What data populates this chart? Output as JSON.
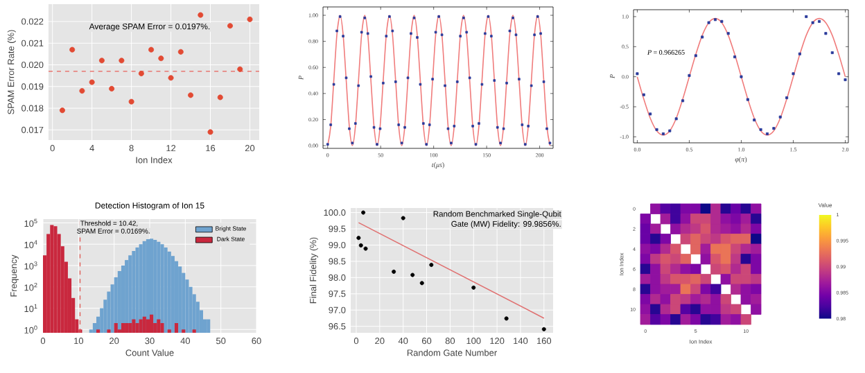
{
  "chart_data": [
    {
      "type": "scatter",
      "xlabel": "Ion Index",
      "ylabel": "SPAM Error Rate (%)",
      "grid": true,
      "x": [
        1,
        2,
        3,
        4,
        5,
        6,
        7,
        8,
        9,
        10,
        11,
        12,
        13,
        14,
        15,
        16,
        17,
        18,
        19,
        20
      ],
      "series": [
        {
          "marker": "circle",
          "color": "#e24a33",
          "values": [
            0.0179,
            0.0207,
            0.0188,
            0.0192,
            0.0202,
            0.0189,
            0.0202,
            0.0183,
            0.0196,
            0.0207,
            0.0203,
            0.0194,
            0.0206,
            0.0186,
            0.0223,
            0.0169,
            0.0185,
            0.0218,
            0.0198,
            0.0221
          ]
        }
      ],
      "xlim": [
        -0.4,
        20.95
      ],
      "ylim": [
        0.01653,
        0.0228
      ],
      "xticks": [
        0,
        4,
        8,
        12,
        16,
        20
      ],
      "yticks": [
        0.017,
        0.018,
        0.019,
        {
          "value": 0.02,
          "label": "0.020"
        },
        0.021,
        0.022
      ],
      "ref_lines": [
        {
          "axis": "y",
          "value": 0.0197,
          "color": "#e8605a",
          "line_style": "dashed"
        }
      ],
      "annotations": [
        "Average SPAM Error = 0.0197%."
      ]
    },
    {
      "type": "line",
      "xlabel": "*t*(*μs*)",
      "ylabel": "P",
      "xlim": [
        -4.4,
        212.7
      ],
      "ylim": [
        -0.021,
        1.064
      ],
      "xticks": [
        0,
        50,
        100,
        150,
        200
      ],
      "yticks": [
        {
          "value": 0,
          "label": "0.00"
        },
        {
          "value": 0.2,
          "label": "0.20"
        },
        {
          "value": 0.4,
          "label": "0.40"
        },
        {
          "value": 0.6,
          "label": "0.60"
        },
        {
          "value": 0.8,
          "label": "0.80"
        },
        {
          "value": 1,
          "label": "1.00"
        }
      ],
      "series": [
        {
          "type": "line",
          "color": "#f07c7c",
          "x": [
            0,
            2.9,
            5.8,
            8.7,
            11.7,
            14.6,
            17.5,
            20.4,
            23.3,
            26.2,
            29.1,
            32.0,
            35.0,
            37.9,
            40.8,
            43.7,
            46.6,
            49.5,
            52.4,
            55.3,
            58.3,
            61.2,
            64.1,
            67.0,
            69.9,
            72.8,
            75.7,
            78.6,
            81.6,
            84.5,
            87.4,
            90.3,
            93.2,
            96.1,
            99.0,
            101.9,
            104.9,
            107.8,
            110.7,
            113.6,
            116.5,
            119.4,
            122.3,
            125.2,
            128.2,
            131.1,
            134.0,
            136.9,
            139.8,
            142.7,
            145.6,
            148.5,
            151.5,
            154.4,
            157.3,
            160.2,
            163.1,
            166.0,
            168.9,
            171.8,
            174.8,
            177.7,
            180.6,
            183.5,
            186.4,
            189.3,
            192.2,
            195.1,
            198.1,
            201.0,
            203.9,
            206.8,
            209.7
          ],
          "values": [
            0,
            0.15,
            0.5,
            0.85,
            1,
            0.85,
            0.5,
            0.15,
            0,
            0.15,
            0.5,
            0.85,
            1,
            0.85,
            0.5,
            0.15,
            0,
            0.15,
            0.5,
            0.85,
            1,
            0.85,
            0.5,
            0.15,
            0,
            0.15,
            0.5,
            0.85,
            1,
            0.85,
            0.5,
            0.15,
            0,
            0.15,
            0.5,
            0.85,
            1,
            0.85,
            0.5,
            0.15,
            0,
            0.15,
            0.5,
            0.85,
            1,
            0.85,
            0.5,
            0.15,
            0,
            0.15,
            0.5,
            0.85,
            1,
            0.85,
            0.5,
            0.15,
            0,
            0.15,
            0.5,
            0.85,
            1,
            0.85,
            0.5,
            0.15,
            0,
            0.15,
            0.5,
            0.85,
            1,
            0.85,
            0.5,
            0.15,
            0
          ]
        },
        {
          "type": "scatter",
          "marker": "square",
          "color": "#2a3a9a",
          "x": [
            0,
            2.9,
            5.8,
            8.7,
            11.7,
            14.6,
            17.5,
            20.4,
            23.3,
            26.2,
            29.1,
            32.0,
            35.0,
            37.9,
            40.8,
            43.7,
            46.6,
            49.5,
            52.4,
            55.3,
            58.3,
            61.2,
            64.1,
            67.0,
            69.9,
            72.8,
            75.7,
            78.6,
            81.6,
            84.5,
            87.4,
            90.3,
            93.2,
            96.1,
            99.0,
            101.9,
            104.9,
            107.8,
            110.7,
            113.6,
            116.5,
            119.4,
            122.3,
            125.2,
            128.2,
            131.1,
            134.0,
            136.9,
            139.8,
            142.7,
            145.6,
            148.5,
            151.5,
            154.4,
            157.3,
            160.2,
            163.1,
            166.0,
            168.9,
            171.8,
            174.8,
            177.7,
            180.6,
            183.5,
            186.4,
            189.3,
            192.2,
            195.1,
            198.1,
            201.0,
            203.9,
            206.8,
            209.7
          ],
          "values": [
            0.01,
            0.16,
            0.47,
            0.88,
            0.99,
            0.84,
            0.52,
            0.13,
            0.02,
            0.17,
            0.46,
            0.87,
            0.98,
            0.86,
            0.53,
            0.14,
            0.01,
            0.13,
            0.48,
            0.84,
            0.99,
            0.88,
            0.49,
            0.16,
            0.02,
            0.14,
            0.52,
            0.86,
            0.98,
            0.83,
            0.47,
            0.17,
            0.01,
            0.16,
            0.51,
            0.87,
            0.99,
            0.85,
            0.46,
            0.13,
            0.02,
            0.15,
            0.49,
            0.84,
            0.98,
            0.87,
            0.52,
            0.15,
            0.01,
            0.17,
            0.47,
            0.86,
            0.99,
            0.84,
            0.5,
            0.14,
            0.02,
            0.13,
            0.48,
            0.88,
            0.98,
            0.85,
            0.51,
            0.16,
            0.01,
            0.15,
            0.46,
            0.85,
            0.99,
            0.86,
            0.49,
            0.13,
            0.02
          ]
        }
      ]
    },
    {
      "type": "line",
      "xlabel": "*φ*(*π*)",
      "ylabel": "P",
      "xlim": [
        -0.036,
        2.03
      ],
      "ylim": [
        -1.1,
        1.115
      ],
      "xticks": [
        {
          "value": 0,
          "label": "0.0"
        },
        0.5,
        {
          "value": 1,
          "label": "1.0"
        },
        1.5,
        {
          "value": 2,
          "label": "2.0"
        }
      ],
      "yticks": [
        {
          "value": -1,
          "label": "-1.0"
        },
        -0.5,
        {
          "value": 0,
          "label": "0.0"
        },
        0.5,
        {
          "value": 1,
          "label": "1.0"
        }
      ],
      "annotations": [
        "*P* = 0.966265"
      ],
      "series": [
        {
          "type": "line",
          "color": "#f07c7c",
          "x": [
            0,
            0.0625,
            0.125,
            0.1875,
            0.25,
            0.3125,
            0.375,
            0.4375,
            0.5,
            0.5625,
            0.625,
            0.6875,
            0.75,
            0.8125,
            0.875,
            0.9375,
            1,
            1.0625,
            1.125,
            1.1875,
            1.25,
            1.3125,
            1.375,
            1.4375,
            1.5,
            1.5625,
            1.625,
            1.6875,
            1.75,
            1.8125,
            1.875,
            1.9375,
            2
          ],
          "values": [
            0,
            -0.37,
            -0.69,
            -0.9,
            -0.97,
            -0.9,
            -0.69,
            -0.37,
            0,
            0.37,
            0.69,
            0.9,
            0.97,
            0.9,
            0.69,
            0.37,
            0,
            -0.37,
            -0.69,
            -0.9,
            -0.97,
            -0.9,
            -0.69,
            -0.37,
            0,
            0.37,
            0.69,
            0.9,
            0.97,
            0.9,
            0.69,
            0.37,
            0
          ]
        },
        {
          "type": "scatter",
          "marker": "square",
          "color": "#2a3a9a",
          "x": [
            0,
            0.0625,
            0.125,
            0.1875,
            0.25,
            0.3125,
            0.375,
            0.4375,
            0.5,
            0.5625,
            0.625,
            0.6875,
            0.75,
            0.8125,
            0.875,
            0.9375,
            1,
            1.0625,
            1.125,
            1.1875,
            1.25,
            1.3125,
            1.375,
            1.4375,
            1.5,
            1.5625,
            1.625,
            1.6875,
            1.75,
            1.8125,
            1.875,
            1.9375,
            2
          ],
          "values": [
            0.05,
            -0.3,
            -0.62,
            -0.88,
            -0.95,
            -0.9,
            -0.7,
            -0.4,
            0.02,
            0.35,
            0.66,
            0.9,
            0.95,
            0.92,
            0.72,
            0.33,
            0.0,
            -0.38,
            -0.72,
            -0.88,
            -0.95,
            -0.86,
            -0.67,
            -0.35,
            0.05,
            0.38,
            1.0,
            0.9,
            0.92,
            0.72,
            0.4,
            0.05,
            -0.05
          ]
        }
      ]
    },
    {
      "type": "histogram",
      "title": "Detection Histogram of Ion 15",
      "xlabel": "Count Value",
      "ylabel": "Frequency",
      "log": "y",
      "grid": true,
      "legend": "top right",
      "bins": [
        0,
        1,
        2,
        3,
        4,
        5,
        6,
        7,
        8,
        9,
        10,
        11,
        12,
        13,
        14,
        15,
        16,
        17,
        18,
        19,
        20,
        21,
        22,
        23,
        24,
        25,
        26,
        27,
        28,
        29,
        30,
        31,
        32,
        33,
        34,
        35,
        36,
        37,
        38,
        39,
        40,
        41,
        42,
        43,
        44,
        45,
        46,
        47
      ],
      "xlim": [
        0,
        60
      ],
      "ylim": [
        0.7,
        150000
      ],
      "xticks": [
        0,
        10,
        20,
        30,
        40,
        50,
        60
      ],
      "yticks": [
        {
          "value": 1,
          "label": "10$^{0}$"
        },
        {
          "value": 10,
          "label": "10$^{1}$"
        },
        {
          "value": 100,
          "label": "10$^{2}$"
        },
        {
          "value": 1000,
          "label": "10$^{3}$"
        },
        {
          "value": 10000,
          "label": "10$^{4}$"
        },
        {
          "value": 100000,
          "label": "10$^{5}$"
        }
      ],
      "ref_lines": [
        {
          "axis": "x",
          "value": 10.42,
          "color": "#e0605a",
          "line_style": "dashed"
        }
      ],
      "annotations": [
        "Threshold = 10.42,",
        "SPAM Error = 0.0169%."
      ],
      "series": [
        {
          "name": "Bright State",
          "color": "#6fa3cf",
          "values": [
            null,
            null,
            null,
            null,
            null,
            null,
            null,
            null,
            null,
            null,
            null,
            null,
            null,
            1,
            2,
            4,
            10,
            25,
            60,
            130,
            280,
            550,
            1000,
            1800,
            3000,
            4800,
            7000,
            10000,
            14000,
            17000,
            18000,
            16000,
            13000,
            10000,
            7000,
            4500,
            2800,
            1600,
            900,
            450,
            220,
            100,
            45,
            20,
            8,
            3,
            3
          ]
        },
        {
          "name": "Dark State",
          "color": "#c9283e",
          "values": [
            3000,
            30000,
            80000,
            70000,
            30000,
            8000,
            1500,
            250,
            30,
            3,
            1,
            null,
            null,
            null,
            null,
            1,
            null,
            null,
            1,
            null,
            2,
            1,
            2,
            2,
            2,
            3,
            2,
            3,
            4,
            3,
            5,
            2,
            3,
            2,
            null,
            1,
            null,
            2,
            null,
            1,
            null,
            null,
            1,
            null,
            null,
            null,
            null
          ]
        }
      ]
    },
    {
      "type": "scatter",
      "xlabel": "Random Gate Number",
      "ylabel": "Final Fidelity (%)",
      "grid": true,
      "xlim": [
        -4.7,
        167.8
      ],
      "ylim": [
        96.3,
        100.14
      ],
      "xticks": [
        0,
        20,
        40,
        60,
        80,
        100,
        120,
        140,
        160
      ],
      "yticks": [
        96.5,
        {
          "value": 97,
          "label": "97.0"
        },
        97.5,
        {
          "value": 98,
          "label": "98.0"
        },
        98.5,
        {
          "value": 99,
          "label": "99.0"
        },
        99.5,
        {
          "value": 100,
          "label": "100.0"
        }
      ],
      "annotations": [
        "Random Benchmarked Single-Qubit",
        "Gate (MW) Fidelity: 99.9856%."
      ],
      "series": [
        {
          "type": "scatter",
          "marker": "circle",
          "color": "#000000",
          "x": [
            2,
            4,
            6,
            8,
            32,
            40,
            48,
            56,
            64,
            100,
            128,
            160
          ],
          "values": [
            99.22,
            98.99,
            100.0,
            98.89,
            98.18,
            99.83,
            98.08,
            97.83,
            98.39,
            97.69,
            96.74,
            96.41
          ]
        },
        {
          "type": "line",
          "color": "#e07070",
          "x": [
            2,
            160
          ],
          "values": [
            99.69,
            96.75
          ]
        }
      ]
    },
    {
      "type": "heatmap",
      "xlabel": "Ion Index",
      "ylabel": "Ion Index",
      "clabel": "Value",
      "clim": [
        0.98,
        1
      ],
      "cticks": [
        0.98,
        0.985,
        0.99,
        0.995,
        1
      ],
      "categories": [
        "0",
        null,
        null,
        null,
        null,
        "5",
        null,
        null,
        null,
        null,
        "10",
        null
      ],
      "y_categories": [
        "0",
        null,
        "2",
        null,
        "4",
        null,
        "6",
        null,
        "8",
        null,
        "10",
        null
      ],
      "cells": [
        [
          null,
          0.986,
          0.983,
          0.982,
          0.985,
          0.985,
          0.98,
          0.988,
          0.981,
          0.984,
          0.981,
          0.986
        ],
        [
          0.985,
          null,
          0.987,
          0.982,
          0.986,
          0.99,
          0.99,
          0.988,
          0.986,
          0.985,
          0.987,
          0.981
        ],
        [
          0.984,
          0.987,
          null,
          0.986,
          0.988,
          0.989,
          0.991,
          0.988,
          0.987,
          0.986,
          0.988,
          0.985
        ],
        [
          0.984,
          0.981,
          0.985,
          null,
          0.99,
          0.992,
          0.99,
          0.989,
          0.991,
          0.992,
          0.992,
          0.98
        ],
        [
          0.986,
          0.985,
          0.988,
          0.991,
          null,
          0.992,
          0.987,
          0.993,
          0.993,
          0.99,
          0.988,
          0.987
        ],
        [
          0.985,
          0.989,
          0.991,
          0.99,
          0.992,
          null,
          0.986,
          0.991,
          0.993,
          0.989,
          0.981,
          0.985
        ],
        [
          0.981,
          0.986,
          0.99,
          0.988,
          0.986,
          0.985,
          null,
          0.99,
          0.991,
          0.988,
          0.99,
          0.985
        ],
        [
          0.987,
          0.986,
          0.989,
          0.991,
          0.991,
          0.992,
          0.99,
          null,
          0.986,
          0.99,
          0.99,
          0.989
        ],
        [
          0.981,
          0.986,
          0.987,
          0.987,
          0.993,
          0.99,
          0.985,
          0.982,
          null,
          0.988,
          0.986,
          0.985
        ],
        [
          0.985,
          0.988,
          0.986,
          0.99,
          0.989,
          0.987,
          0.988,
          0.986,
          0.99,
          null,
          0.986,
          0.987
        ],
        [
          0.986,
          0.981,
          0.988,
          0.99,
          0.983,
          0.981,
          0.986,
          0.986,
          0.989,
          0.99,
          null,
          0.986
        ],
        [
          0.987,
          0.983,
          0.985,
          0.981,
          0.987,
          0.985,
          0.981,
          0.982,
          0.987,
          0.986,
          0.99,
          null
        ]
      ]
    }
  ]
}
